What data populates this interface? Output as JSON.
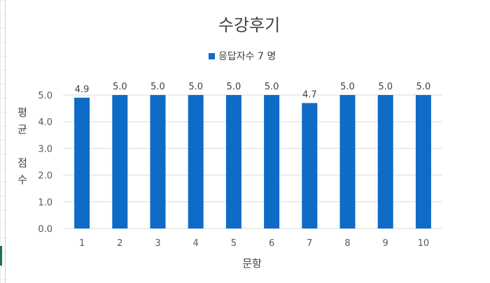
{
  "chart_data": {
    "type": "bar",
    "title": "수강후기",
    "xlabel": "문항",
    "ylabel": "평균 점수",
    "ylabel_lines": [
      "평",
      "균",
      "점",
      "수"
    ],
    "categories": [
      "1",
      "2",
      "3",
      "4",
      "5",
      "6",
      "7",
      "8",
      "9",
      "10"
    ],
    "series": [
      {
        "name": "응답자수 7 명",
        "values": [
          4.9,
          5.0,
          5.0,
          5.0,
          5.0,
          5.0,
          4.7,
          5.0,
          5.0,
          5.0
        ],
        "data_labels": [
          "4.9",
          "5.0",
          "5.0",
          "5.0",
          "5.0",
          "5.0",
          "4.7",
          "5.0",
          "5.0",
          "5.0"
        ],
        "color": "#0e6bc6"
      }
    ],
    "ylim": [
      0,
      5.0
    ],
    "yticks": [
      "0.0",
      "1.0",
      "2.0",
      "3.0",
      "4.0",
      "5.0"
    ],
    "grid": true,
    "legend": "top"
  }
}
